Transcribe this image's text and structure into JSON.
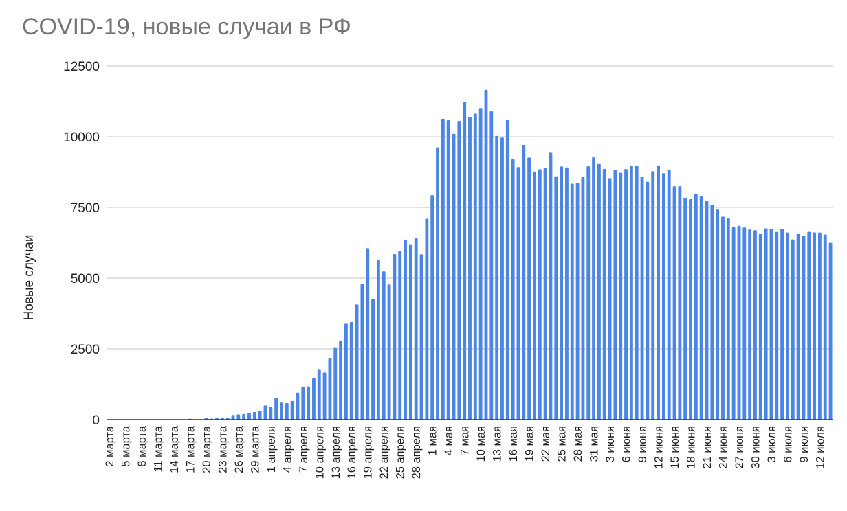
{
  "chart_data": {
    "type": "bar",
    "title": "COVID-19, новые случаи в РФ",
    "xlabel": "",
    "ylabel": "Новые случаи",
    "ylim": [
      0,
      12500
    ],
    "yticks": [
      0,
      2500,
      5000,
      7500,
      10000,
      12500
    ],
    "grid": true,
    "legend": "none",
    "bar_color": "#4a86e8",
    "grid_color": "#d0d0d0",
    "axis_color": "#333333",
    "categories": [
      "2 марта",
      "3 марта",
      "4 марта",
      "5 марта",
      "6 марта",
      "7 марта",
      "8 марта",
      "9 марта",
      "10 марта",
      "11 марта",
      "12 марта",
      "13 марта",
      "14 марта",
      "15 марта",
      "16 марта",
      "17 марта",
      "18 марта",
      "19 марта",
      "20 марта",
      "21 марта",
      "22 марта",
      "23 марта",
      "24 марта",
      "25 марта",
      "26 марта",
      "27 марта",
      "28 марта",
      "29 марта",
      "30 марта",
      "31 марта",
      "1 апреля",
      "2 апреля",
      "3 апреля",
      "4 апреля",
      "5 апреля",
      "6 апреля",
      "7 апреля",
      "8 апреля",
      "9 апреля",
      "10 апреля",
      "11 апреля",
      "12 апреля",
      "13 апреля",
      "14 апреля",
      "15 апреля",
      "16 апреля",
      "17 апреля",
      "18 апреля",
      "19 апреля",
      "20 апреля",
      "21 апреля",
      "22 апреля",
      "23 апреля",
      "24 апреля",
      "25 апреля",
      "26 апреля",
      "27 апреля",
      "28 апреля",
      "29 апреля",
      "30 апреля",
      "1 мая",
      "2 мая",
      "3 мая",
      "4 мая",
      "5 мая",
      "6 мая",
      "7 мая",
      "8 мая",
      "9 мая",
      "10 мая",
      "11 мая",
      "12 мая",
      "13 мая",
      "14 мая",
      "15 мая",
      "16 мая",
      "17 мая",
      "18 мая",
      "19 мая",
      "20 мая",
      "21 мая",
      "22 мая",
      "23 мая",
      "24 мая",
      "25 мая",
      "26 мая",
      "27 мая",
      "28 мая",
      "29 мая",
      "30 мая",
      "31 мая",
      "1 июня",
      "2 июня",
      "3 июня",
      "4 июня",
      "5 июня",
      "6 июня",
      "7 июня",
      "8 июня",
      "9 июня",
      "10 июня",
      "11 июня",
      "12 июня",
      "13 июня",
      "14 июня",
      "15 июня",
      "16 июня",
      "17 июня",
      "18 июня",
      "19 июня",
      "20 июня",
      "21 июня",
      "22 июня",
      "23 июня",
      "24 июня",
      "25 июня",
      "26 июня",
      "27 июня",
      "28 июня",
      "29 июня",
      "30 июня",
      "1 июля",
      "2 июля",
      "3 июля",
      "4 июля",
      "5 июля",
      "6 июля",
      "7 июля",
      "8 июля",
      "9 июля",
      "10 июля",
      "11 июля",
      "12 июля",
      "13 июля",
      "14 июля"
    ],
    "xtick_labels": [
      "2 марта",
      "5 марта",
      "8 марта",
      "11 марта",
      "14 марта",
      "17 марта",
      "20 марта",
      "23 марта",
      "26 марта",
      "29 марта",
      "1 апреля",
      "4 апреля",
      "7 апреля",
      "10 апреля",
      "13 апреля",
      "16 апреля",
      "19 апреля",
      "22 апреля",
      "25 апреля",
      "28 апреля",
      "1 мая",
      "4 мая",
      "7 мая",
      "10 мая",
      "13 мая",
      "16 мая",
      "19 мая",
      "22 мая",
      "25 мая",
      "28 мая",
      "31 мая",
      "3 июня",
      "6 июня",
      "9 июня",
      "12 июня",
      "15 июня",
      "18 июня",
      "21 июня",
      "24 июня",
      "27 июня",
      "30 июня",
      "3 июля",
      "6 июля",
      "9 июля",
      "12 июля"
    ],
    "values": [
      1,
      0,
      0,
      0,
      0,
      0,
      0,
      0,
      0,
      0,
      0,
      2,
      0,
      0,
      4,
      29,
      14,
      16,
      53,
      33,
      58,
      71,
      57,
      163,
      182,
      196,
      228,
      270,
      302,
      501,
      440,
      771,
      601,
      582,
      658,
      954,
      1154,
      1175,
      1459,
      1786,
      1667,
      2186,
      2558,
      2774,
      3388,
      3448,
      4070,
      4785,
      6060,
      4268,
      5642,
      5236,
      4774,
      5849,
      5966,
      6361,
      6198,
      6411,
      5841,
      7099,
      7933,
      9623,
      10633,
      10581,
      10102,
      10559,
      11231,
      10699,
      10817,
      11012,
      11656,
      10899,
      10028,
      9974,
      10598,
      9200,
      8926,
      9709,
      9263,
      8764,
      8849,
      8894,
      9434,
      8599,
      8946,
      8915,
      8338,
      8371,
      8572,
      8952,
      9268,
      9035,
      8863,
      8536,
      8831,
      8726,
      8855,
      8985,
      8984,
      8595,
      8404,
      8779,
      8987,
      8706,
      8835,
      8246,
      8248,
      7843,
      7790,
      7972,
      7889,
      7728,
      7600,
      7425,
      7176,
      7113,
      6800,
      6852,
      6791,
      6719,
      6693,
      6556,
      6760,
      6736,
      6632,
      6736,
      6611,
      6368,
      6562,
      6509,
      6635,
      6615,
      6611,
      6537,
      6248
    ]
  }
}
